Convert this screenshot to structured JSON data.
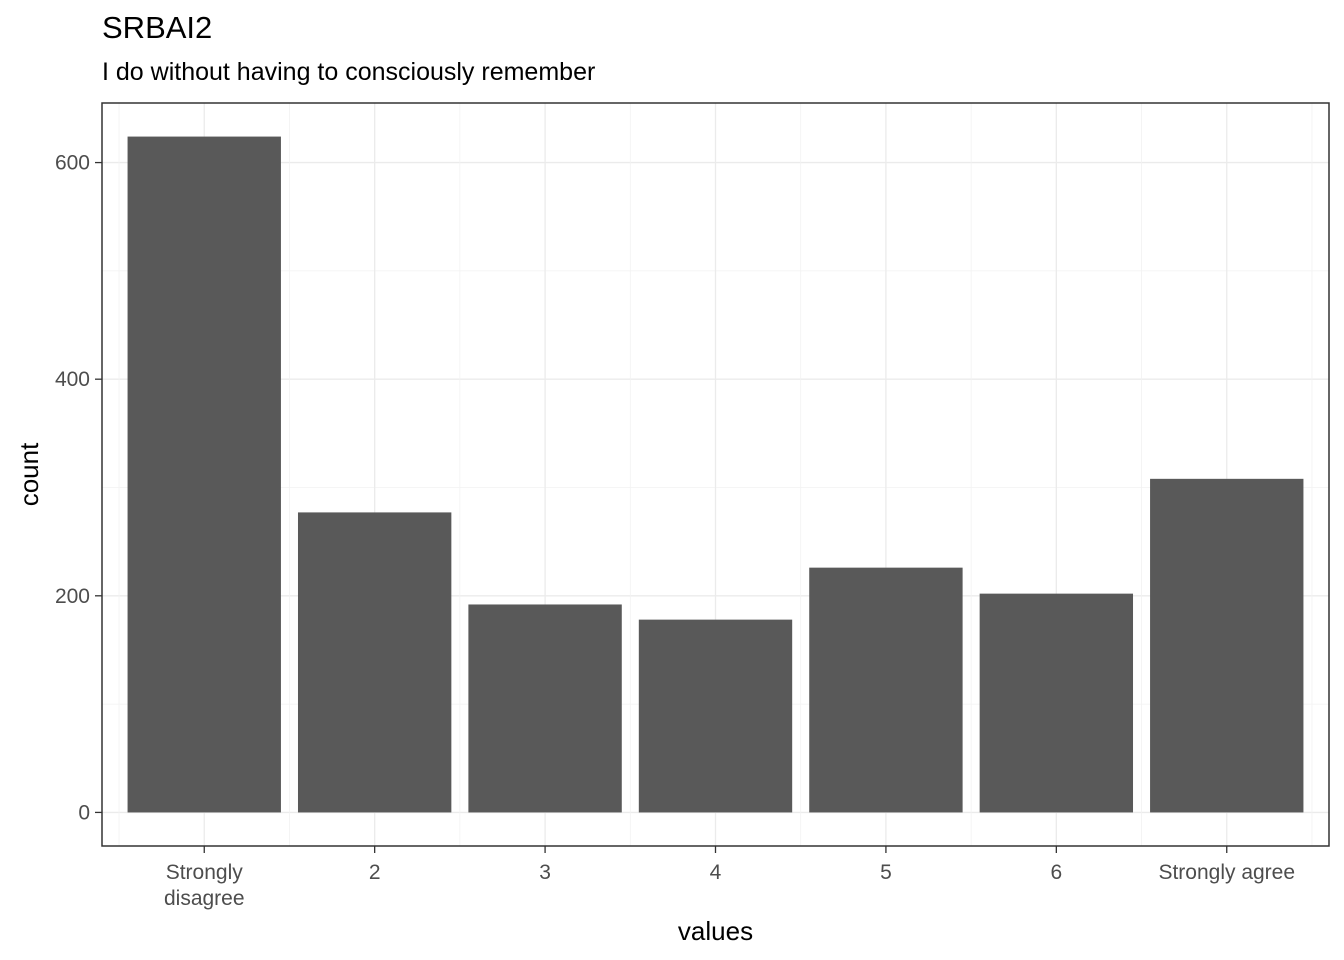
{
  "chart_data": {
    "type": "bar",
    "title": "SRBAI2",
    "subtitle": "I do without having to consciously remember",
    "xlabel": "values",
    "ylabel": "count",
    "categories": [
      "Strongly disagree",
      "2",
      "3",
      "4",
      "5",
      "6",
      "Strongly agree"
    ],
    "category_lines": [
      [
        "Strongly",
        "disagree"
      ],
      [
        "2"
      ],
      [
        "3"
      ],
      [
        "4"
      ],
      [
        "5"
      ],
      [
        "6"
      ],
      [
        "Strongly agree"
      ]
    ],
    "values": [
      624,
      277,
      192,
      178,
      226,
      202,
      308
    ],
    "yticks": [
      0,
      200,
      400,
      600
    ],
    "ylim": [
      -31,
      655
    ],
    "bar_color": "#595959",
    "grid": true
  }
}
